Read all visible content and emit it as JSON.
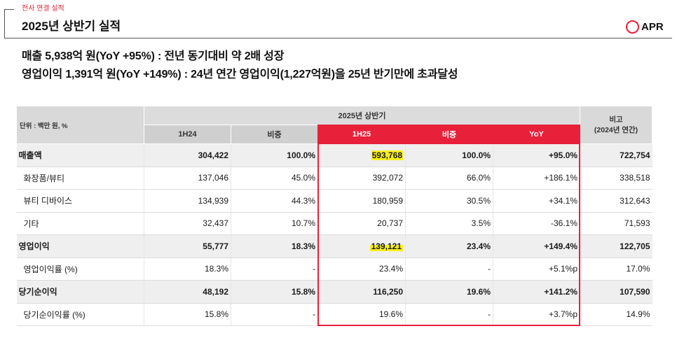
{
  "section_label": "전사 연결 실적",
  "title": "2025년 상반기 실적",
  "logo": {
    "text": "APR",
    "icon": "ring-icon"
  },
  "headlines": [
    "매출 5,938억 원(YoY +95%) : 전년 동기대비 약 2배 성장",
    "영업이익 1,391억 원(YoY +149%) : 24년 연간 영업이익(1,227억원)을 25년 반기만에 초과달성"
  ],
  "colors": {
    "accent_red": "#e8203a",
    "highlight_yellow": "#f7ef1f"
  },
  "table": {
    "unit_label": "단위 : 백만 원, %",
    "group_header": "2025년 상반기",
    "columns": [
      "1H24",
      "비중",
      "1H25",
      "비중",
      "YoY"
    ],
    "highlighted_columns": [
      2,
      3,
      4
    ],
    "note_header": [
      "비고",
      "(2024년 연간)"
    ],
    "rows": [
      {
        "label": "매출액",
        "bold": true,
        "values": [
          "304,422",
          "100.0%",
          "593,768",
          "100.0%",
          "+95.0%"
        ],
        "note": "722,754",
        "highlighted_value_index": 2
      },
      {
        "label": "화장품/뷰티",
        "bold": false,
        "values": [
          "137,046",
          "45.0%",
          "392,072",
          "66.0%",
          "+186.1%"
        ],
        "note": "338,518"
      },
      {
        "label": "뷰티 디바이스",
        "bold": false,
        "values": [
          "134,939",
          "44.3%",
          "180,959",
          "30.5%",
          "+34.1%"
        ],
        "note": "312,643"
      },
      {
        "label": "기타",
        "bold": false,
        "values": [
          "32,437",
          "10.7%",
          "20,737",
          "3.5%",
          "-36.1%"
        ],
        "note": "71,593"
      },
      {
        "label": "영업이익",
        "bold": true,
        "values": [
          "55,777",
          "18.3%",
          "139,121",
          "23.4%",
          "+149.4%"
        ],
        "note": "122,705",
        "highlighted_value_index": 2
      },
      {
        "label": "영업이익률 (%)",
        "bold": false,
        "values": [
          "18.3%",
          "-",
          "23.4%",
          "-",
          "+5.1%p"
        ],
        "note": "17.0%"
      },
      {
        "label": "당기순이익",
        "bold": true,
        "values": [
          "48,192",
          "15.8%",
          "116,250",
          "19.6%",
          "+141.2%"
        ],
        "note": "107,590"
      },
      {
        "label": "당기순이익률 (%)",
        "bold": false,
        "values": [
          "15.8%",
          "-",
          "19.6%",
          "-",
          "+3.7%p"
        ],
        "note": "14.9%"
      }
    ]
  }
}
